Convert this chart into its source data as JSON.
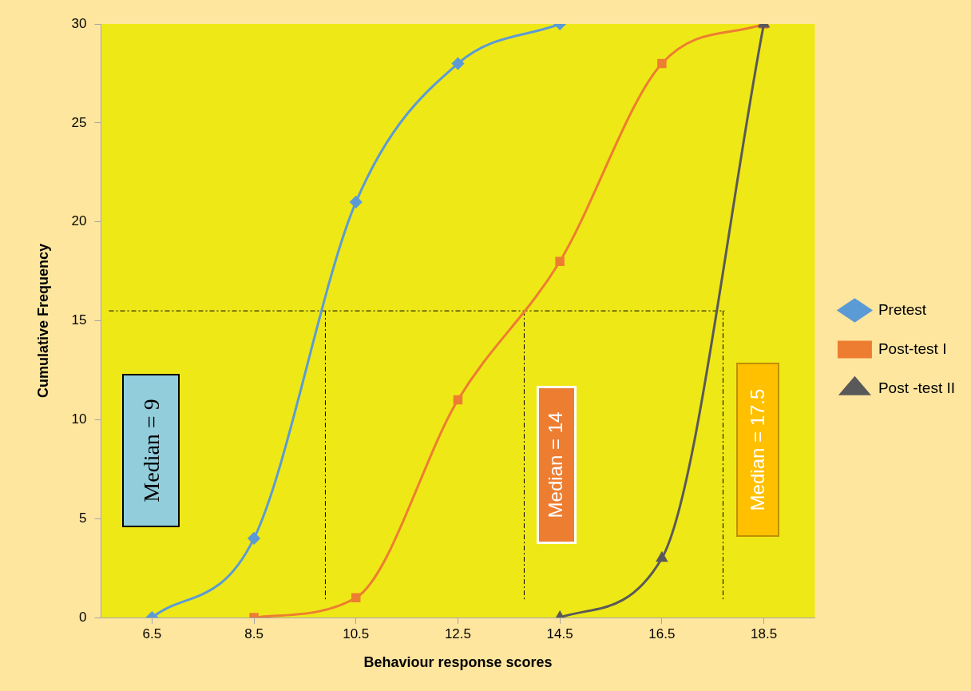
{
  "chart_data": {
    "type": "line",
    "xlabel": "Behaviour response scores",
    "ylabel": "Cumulative Frequency",
    "xlim": [
      5.5,
      19.5
    ],
    "xticks": [
      6.5,
      8.5,
      10.5,
      12.5,
      14.5,
      16.5,
      18.5
    ],
    "ylim": [
      0,
      30
    ],
    "yticks": [
      0,
      5,
      10,
      15,
      20,
      25,
      30
    ],
    "grid": false,
    "legend": "right",
    "series": [
      {
        "name": "Pretest",
        "color": "#5b9bd5",
        "marker": "diamond",
        "x": [
          6.5,
          8.5,
          10.5,
          12.5,
          14.5
        ],
        "values": [
          0,
          4,
          21,
          28,
          30
        ]
      },
      {
        "name": "Post-test I",
        "color": "#ed7d31",
        "marker": "square",
        "x": [
          8.5,
          10.5,
          12.5,
          14.5,
          16.5,
          18.5
        ],
        "values": [
          0,
          1,
          11,
          18,
          28,
          30
        ]
      },
      {
        "name": "Post -test II",
        "color": "#595959",
        "marker": "triangle",
        "x": [
          14.5,
          16.5,
          18.5
        ],
        "values": [
          0,
          3,
          30
        ]
      }
    ],
    "ref_lines": [
      {
        "axis": "y",
        "value": 15.5,
        "line_style": "dashed",
        "color": "#000000"
      },
      {
        "axis": "x",
        "value": 9.9,
        "line_style": "dashed",
        "color": "#000000"
      },
      {
        "axis": "x",
        "value": 13.8,
        "line_style": "dashed",
        "color": "#000000"
      },
      {
        "axis": "x",
        "value": 17.7,
        "line_style": "dashed",
        "color": "#000000"
      }
    ],
    "annotations": [
      "Median = 9",
      "Median = 14",
      "Median = 17.5"
    ]
  }
}
